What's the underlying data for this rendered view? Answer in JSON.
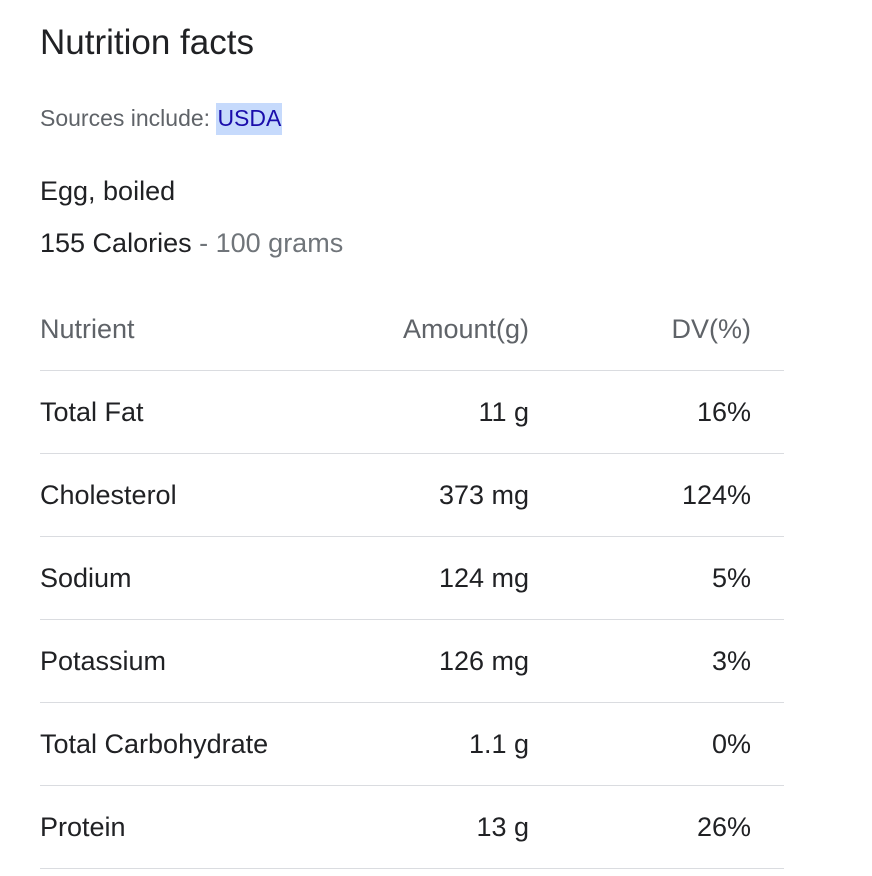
{
  "panel": {
    "title": "Nutrition facts",
    "sources_prefix": "Sources include:",
    "sources_link": "USDA",
    "food_name": "Egg, boiled",
    "calories": "155 Calories",
    "separator": "-",
    "serving": "100 grams"
  },
  "table": {
    "headers": {
      "nutrient": "Nutrient",
      "amount": "Amount(g)",
      "dv": "DV(%)"
    },
    "rows": [
      {
        "nutrient": "Total Fat",
        "amount": "11 g",
        "dv": "16%"
      },
      {
        "nutrient": "Cholesterol",
        "amount": "373 mg",
        "dv": "124%"
      },
      {
        "nutrient": "Sodium",
        "amount": "124 mg",
        "dv": "5%"
      },
      {
        "nutrient": "Potassium",
        "amount": "126 mg",
        "dv": "3%"
      },
      {
        "nutrient": "Total Carbohydrate",
        "amount": "1.1 g",
        "dv": "0%"
      },
      {
        "nutrient": "Protein",
        "amount": "13 g",
        "dv": "26%"
      }
    ]
  },
  "colors": {
    "link": "#1a0dab",
    "link_highlight": "#c6dafc",
    "muted_text": "#5f6368",
    "divider": "#dadce0"
  }
}
